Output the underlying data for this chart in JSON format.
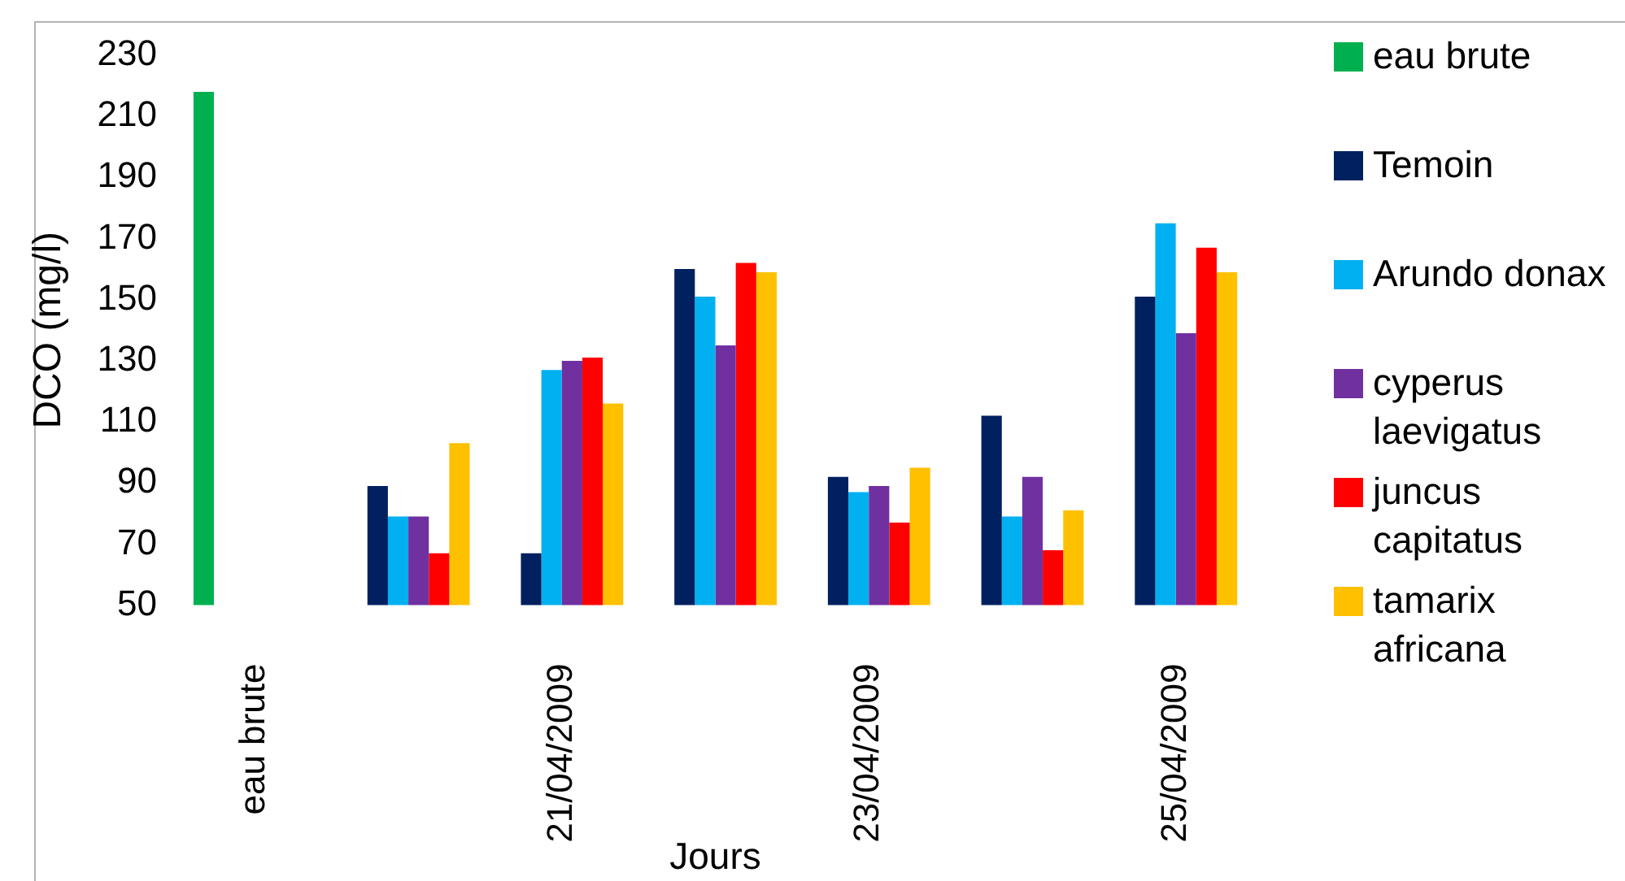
{
  "chart_data": {
    "type": "bar",
    "xlabel": "Jours",
    "ylabel": "DCO (mg/l)",
    "categories": [
      "eau brute",
      null,
      "21/04/2009",
      null,
      "23/04/2009",
      null,
      "25/04/2009"
    ],
    "series": [
      {
        "name": "eau brute",
        "color": "#00b050",
        "values": [
          218,
          null,
          null,
          null,
          null,
          null,
          null
        ]
      },
      {
        "name": "Temoin",
        "color": "#002060",
        "values": [
          null,
          89,
          67,
          160,
          92,
          112,
          151
        ]
      },
      {
        "name": "Arundo donax",
        "color": "#00b0f0",
        "values": [
          null,
          79,
          127,
          151,
          87,
          79,
          175
        ]
      },
      {
        "name": "cyperus laevigatus",
        "color": "#7030a0",
        "values": [
          null,
          79,
          130,
          135,
          89,
          92,
          139
        ]
      },
      {
        "name": "juncus capitatus",
        "color": "#ff0000",
        "values": [
          null,
          67,
          131,
          162,
          77,
          68,
          167
        ]
      },
      {
        "name": "tamarix africana",
        "color": "#ffc000",
        "values": [
          null,
          103,
          116,
          159,
          95,
          81,
          159
        ]
      }
    ],
    "ylim": [
      50,
      230
    ],
    "yticks": [
      50,
      70,
      90,
      110,
      130,
      150,
      170,
      190,
      210,
      230
    ],
    "grid": false,
    "legend": "right"
  }
}
